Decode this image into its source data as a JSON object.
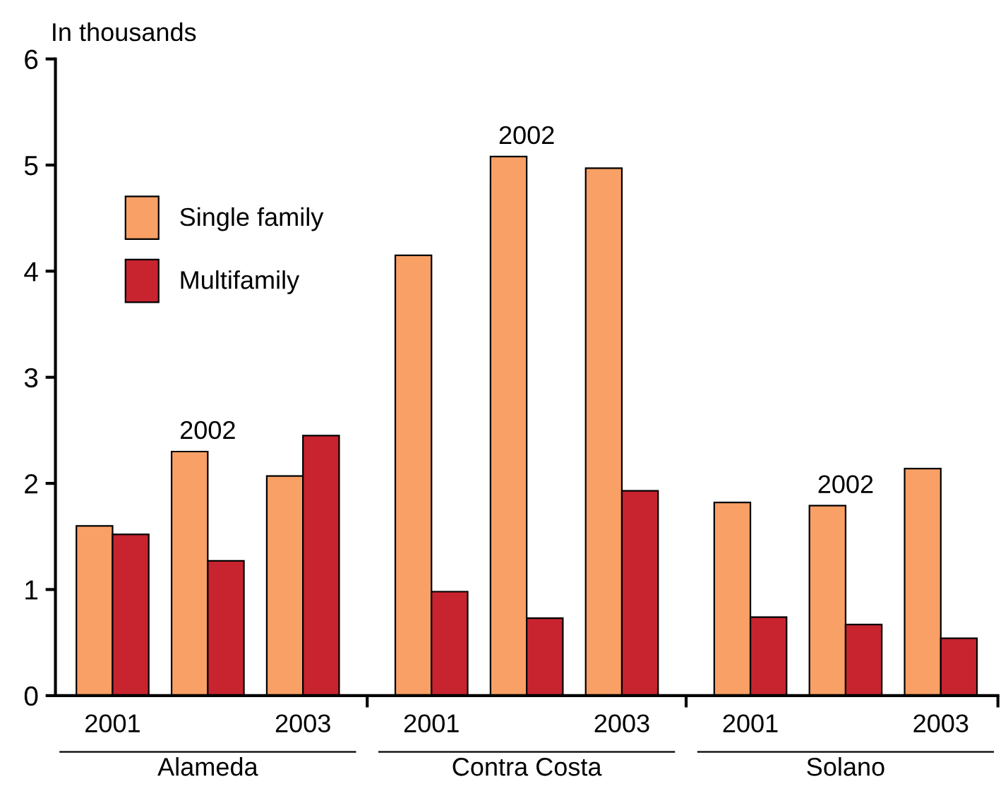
{
  "chart_data": {
    "type": "bar",
    "ylabel": "In thousands",
    "categories": [
      "2001",
      null,
      "2003",
      "2001",
      null,
      "2003",
      "2001",
      null,
      "2003"
    ],
    "series": [
      {
        "name": "Single family",
        "color": "#f9a066",
        "values": [
          1.6,
          2.3,
          2.07,
          4.15,
          5.08,
          4.97,
          1.82,
          1.79,
          2.14
        ]
      },
      {
        "name": "Multifamily",
        "color": "#c8242f",
        "values": [
          1.52,
          1.27,
          2.45,
          0.98,
          0.73,
          1.93,
          0.74,
          0.67,
          0.54
        ]
      }
    ],
    "annotations": [
      "2002",
      "2002",
      "2002",
      "Alameda",
      "Contra Costa",
      "Solano"
    ],
    "ylim": [
      0,
      6
    ],
    "yticks": [
      0,
      1,
      2,
      3,
      4,
      5,
      6
    ],
    "grid": false,
    "legend": "top left"
  }
}
